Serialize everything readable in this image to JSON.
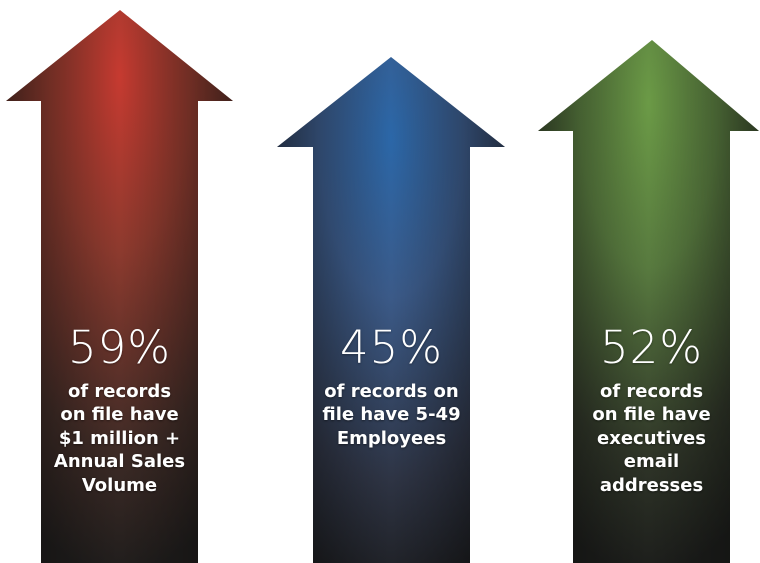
{
  "arrows": [
    {
      "percent": "59%",
      "description": "of records\non file have\n$1 million +\nAnnual Sales\nVolume",
      "color": "#c0352e"
    },
    {
      "percent": "45%",
      "description": "of records on\nfile have 5-49\nEmployees",
      "color": "#2a5f9e"
    },
    {
      "percent": "52%",
      "description": "of records\non file have\nexecutives\nemail\naddresses",
      "color": "#5e8d3e"
    }
  ]
}
